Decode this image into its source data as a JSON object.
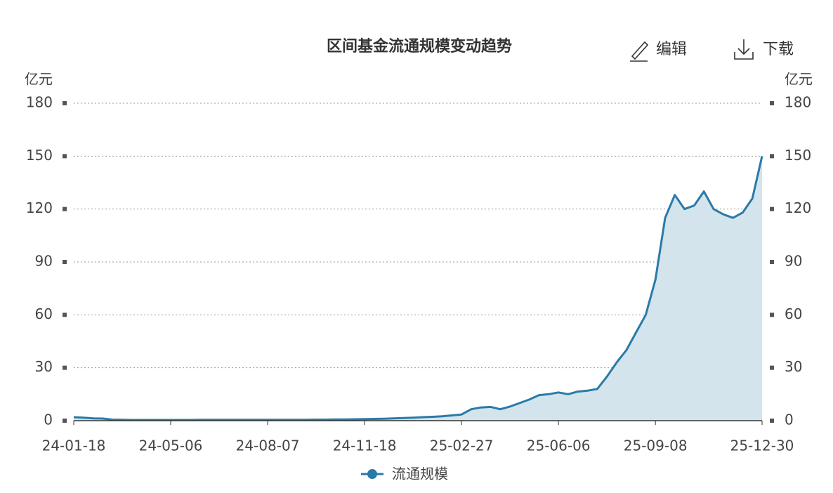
{
  "toolbar": {
    "edit": "编辑",
    "download": "下载"
  },
  "chart_data": {
    "type": "area",
    "title": "区间基金流通规模变动趋势",
    "ylabel": "亿元",
    "y2label": "亿元",
    "categories": [
      "24-01-18",
      null,
      null,
      null,
      null,
      null,
      null,
      null,
      null,
      null,
      "24-05-06",
      null,
      null,
      null,
      null,
      null,
      null,
      null,
      null,
      null,
      "24-08-07",
      null,
      null,
      null,
      null,
      null,
      null,
      null,
      null,
      null,
      "24-11-18",
      null,
      null,
      null,
      null,
      null,
      null,
      null,
      null,
      null,
      "25-02-27",
      null,
      null,
      null,
      null,
      null,
      null,
      null,
      null,
      null,
      "25-06-06",
      null,
      null,
      null,
      null,
      null,
      null,
      null,
      null,
      null,
      "25-09-08",
      null,
      null,
      null,
      null,
      null,
      null,
      null,
      null,
      null,
      null,
      "25-12-30"
    ],
    "series": [
      {
        "name": "流通规模",
        "color": "#2a7aa8",
        "fill": "#d3e4ec",
        "values": [
          2,
          1.7,
          1.3,
          1.2,
          0.6,
          0.5,
          0.4,
          0.4,
          0.4,
          0.4,
          0.4,
          0.4,
          0.4,
          0.5,
          0.5,
          0.5,
          0.5,
          0.5,
          0.5,
          0.5,
          0.5,
          0.5,
          0.5,
          0.5,
          0.5,
          0.6,
          0.6,
          0.7,
          0.7,
          0.8,
          0.9,
          1,
          1.1,
          1.3,
          1.5,
          1.7,
          2,
          2.2,
          2.5,
          3,
          3.5,
          6.5,
          7.5,
          7.8,
          6.5,
          8,
          10,
          12,
          14.5,
          15,
          16,
          15,
          16.5,
          17,
          18,
          25,
          33,
          40,
          50,
          60,
          80,
          115,
          128,
          120,
          122,
          130,
          120,
          117,
          115,
          118,
          126,
          150
        ]
      }
    ],
    "ylim": [
      0,
      180
    ],
    "yticks": [
      0,
      30,
      60,
      90,
      120,
      150,
      180
    ],
    "y2lim": [
      0,
      180
    ],
    "y2ticks": [
      0,
      30,
      60,
      90,
      120,
      150,
      180
    ],
    "grid": true,
    "legend": "bottom"
  }
}
